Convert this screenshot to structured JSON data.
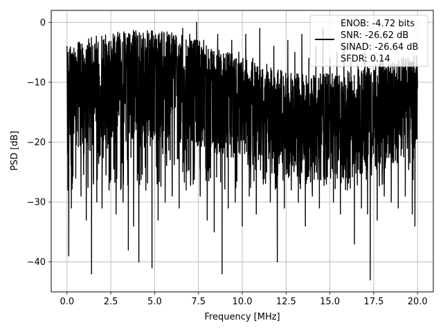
{
  "chart_data": {
    "type": "line",
    "title": "",
    "xlabel": "Frequency [MHz]",
    "ylabel": "PSD [dB]",
    "xlim": [
      -0.9,
      20.9
    ],
    "ylim": [
      -45,
      2
    ],
    "xticks": [
      0.0,
      2.5,
      5.0,
      7.5,
      10.0,
      12.5,
      15.0,
      17.5,
      20.0
    ],
    "xtick_labels": [
      "0.0",
      "2.5",
      "5.0",
      "7.5",
      "10.0",
      "12.5",
      "15.0",
      "17.5",
      "20.0"
    ],
    "yticks": [
      -40,
      -30,
      -20,
      -10,
      0
    ],
    "ytick_labels": [
      "−40",
      "−30",
      "−20",
      "−10",
      "0"
    ],
    "grid": true,
    "legend_position": "top-right",
    "legend_entries": [
      "ENOB: -4.72 bits",
      "SNR: -26.62 dB",
      "SINAD: -26.64 dB",
      "SFDR: 0.14"
    ],
    "series": [
      {
        "color": "#000000",
        "x": [
          0.0,
          0.05,
          0.1,
          0.15,
          0.25,
          0.35,
          0.5,
          0.65,
          0.8,
          0.95,
          1.1,
          1.25,
          1.4,
          1.55,
          1.7,
          1.85,
          2.0,
          2.2,
          2.4,
          2.6,
          2.8,
          3.0,
          3.2,
          3.35,
          3.5,
          3.65,
          3.8,
          3.95,
          4.1,
          4.3,
          4.5,
          4.7,
          4.85,
          5.0,
          5.2,
          5.4,
          5.6,
          5.8,
          6.0,
          6.2,
          6.4,
          6.6,
          6.8,
          7.0,
          7.2,
          7.4,
          7.6,
          7.8,
          8.0,
          8.2,
          8.4,
          8.6,
          8.85,
          9.0,
          9.2,
          9.4,
          9.6,
          9.8,
          10.0,
          10.2,
          10.4,
          10.6,
          10.8,
          11.0,
          11.2,
          11.4,
          11.6,
          11.8,
          12.0,
          12.2,
          12.4,
          12.6,
          12.8,
          13.0,
          13.2,
          13.4,
          13.6,
          13.8,
          14.0,
          14.2,
          14.4,
          14.6,
          14.8,
          15.0,
          15.2,
          15.4,
          15.6,
          15.8,
          16.0,
          16.2,
          16.4,
          16.6,
          16.8,
          17.0,
          17.15,
          17.3,
          17.5,
          17.7,
          17.9,
          18.1,
          18.3,
          18.5,
          18.7,
          18.9,
          19.1,
          19.3,
          19.5,
          19.7,
          19.85,
          20.0
        ],
        "y": [
          -4.0,
          -28.0,
          -39.0,
          -6.0,
          -31.0,
          -10.0,
          -26.0,
          -9.0,
          -29.0,
          -8.0,
          -33.0,
          -7.0,
          -42.0,
          -11.0,
          -30.0,
          -9.0,
          -31.0,
          -8.0,
          -28.0,
          -7.0,
          -32.0,
          -6.0,
          -30.0,
          -12.0,
          -38.0,
          -5.0,
          -34.0,
          -7.0,
          -40.0,
          -6.0,
          -28.0,
          -4.0,
          -41.0,
          -7.0,
          -33.0,
          -3.0,
          -30.0,
          -2.0,
          -29.0,
          -4.0,
          -31.0,
          -1.0,
          -28.0,
          -2.0,
          -27.0,
          0.0,
          -29.0,
          -3.0,
          -33.0,
          -5.0,
          -35.0,
          -2.0,
          -42.0,
          -6.0,
          -31.0,
          -3.0,
          -30.0,
          -5.0,
          -34.0,
          -2.0,
          -29.0,
          -6.0,
          -32.0,
          -1.0,
          -27.0,
          -7.0,
          -30.0,
          -4.0,
          -40.0,
          -8.0,
          -31.0,
          -3.0,
          -28.0,
          -5.0,
          -30.0,
          -2.0,
          -34.0,
          -6.0,
          -29.0,
          -4.0,
          -31.0,
          -1.0,
          -27.0,
          -6.0,
          -30.0,
          -5.0,
          -32.0,
          -4.0,
          -28.0,
          -6.0,
          -37.0,
          -7.0,
          -31.0,
          -5.0,
          -32.0,
          -43.0,
          -8.0,
          -33.0,
          -6.0,
          -29.0,
          -8.0,
          -30.0,
          -7.0,
          -31.0,
          -6.0,
          -29.0,
          -8.0,
          -32.0,
          -34.0,
          -11.0
        ]
      }
    ]
  }
}
